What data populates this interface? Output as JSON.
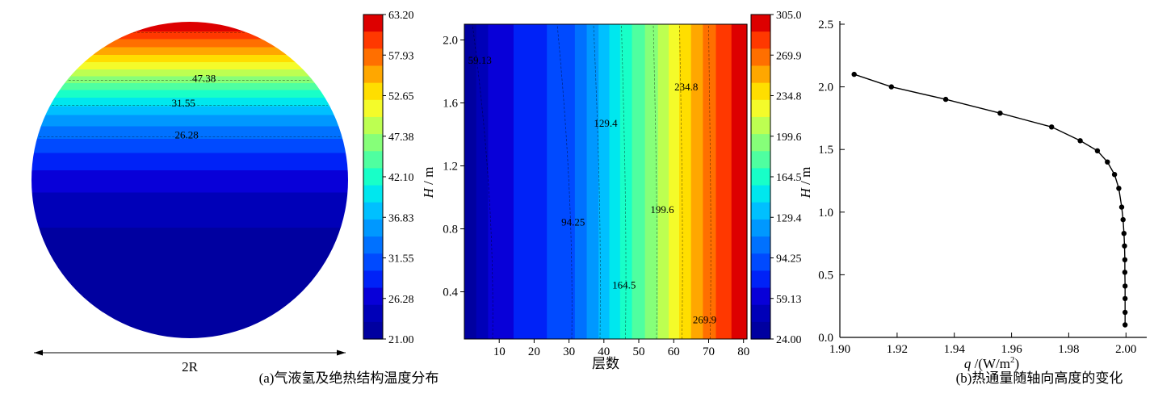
{
  "figure": {
    "caption_a": "(a)气液氢及绝热结构温度分布",
    "caption_b": "(b)热通量随轴向高度的变化",
    "background": "#ffffff"
  },
  "palette": {
    "jet_top_to_bottom": [
      "#DD0000",
      "#FF3800",
      "#FF6F00",
      "#FFA700",
      "#FFDE00",
      "#F4FB2A",
      "#BDFF51",
      "#86FF79",
      "#4FFFA0",
      "#18FFC8",
      "#00E7EE",
      "#00C0FF",
      "#0098FF",
      "#0071FF",
      "#004AFF",
      "#0022F7",
      "#0800D8",
      "#0000B8",
      "#0000A0"
    ]
  },
  "chart_data": [
    {
      "id": "tank-cross-section-temperature",
      "type": "heatmap",
      "shape": "circle",
      "diameter_label": "2R",
      "value_range": [
        21.0,
        63.2
      ],
      "colorbar_ticks": [
        "63.20",
        "57.93",
        "52.65",
        "47.38",
        "42.10",
        "36.83",
        "31.55",
        "26.28",
        "21.00"
      ],
      "band_offsets_top_to_bottom": [
        0,
        0.03,
        0.055,
        0.08,
        0.105,
        0.128,
        0.15,
        0.172,
        0.194,
        0.216,
        0.24,
        0.266,
        0.295,
        0.33,
        0.37,
        0.415,
        0.47,
        0.54,
        0.65,
        1
      ],
      "contour_labels": [
        {
          "text": "47.38",
          "fx": 0.545,
          "fy": 0.19
        },
        {
          "text": "31.55",
          "fx": 0.48,
          "fy": 0.268
        },
        {
          "text": "26.28",
          "fx": 0.49,
          "fy": 0.368
        }
      ],
      "contour_line_fys": [
        0.035,
        0.185,
        0.264,
        0.364
      ]
    },
    {
      "id": "insulation-layer-temperature",
      "type": "heatmap",
      "shape": "rect",
      "xlabel": "层数",
      "ylabel_var": "H",
      "ylabel_rest": " / m",
      "xlim": [
        0,
        81
      ],
      "ylim": [
        0.1,
        2.1
      ],
      "x_ticks": [
        10,
        20,
        30,
        40,
        50,
        60,
        70,
        80
      ],
      "y_ticks": [
        "0.4",
        "0.8",
        "1.2",
        "1.6",
        "2.0"
      ],
      "value_range": [
        24.0,
        305.0
      ],
      "colorbar_ticks": [
        "305.0",
        "269.9",
        "234.8",
        "199.6",
        "164.5",
        "129.4",
        "94.25",
        "59.13",
        "24.00"
      ],
      "band_offsets_left_to_right": [
        0,
        0.042,
        0.084,
        0.174,
        0.292,
        0.391,
        0.433,
        0.475,
        0.513,
        0.551,
        0.593,
        0.639,
        0.685,
        0.723,
        0.76,
        0.802,
        0.844,
        0.89,
        0.945,
        1
      ],
      "contour_labels": [
        {
          "text": "59.13",
          "fx": 0.055,
          "fy": 0.125
        },
        {
          "text": "129.4",
          "fx": 0.5,
          "fy": 0.325
        },
        {
          "text": "234.8",
          "fx": 0.785,
          "fy": 0.21
        },
        {
          "text": "94.25",
          "fx": 0.385,
          "fy": 0.64
        },
        {
          "text": "199.6",
          "fx": 0.7,
          "fy": 0.6
        },
        {
          "text": "164.5",
          "fx": 0.565,
          "fy": 0.84
        },
        {
          "text": "269.9",
          "fx": 0.85,
          "fy": 0.95
        }
      ],
      "contour_line_fxs": [
        0.1,
        0.38,
        0.48,
        0.57,
        0.68,
        0.77,
        0.87
      ]
    },
    {
      "id": "heat-flux-vs-height",
      "type": "line",
      "xlabel_var": "q",
      "xlabel_rest": " /(W/m",
      "xlabel_sup": "2",
      "xlabel_close": ")",
      "ylabel_var": "H",
      "ylabel_rest": " / m",
      "xlim": [
        1.9,
        2.005
      ],
      "ylim": [
        0,
        2.5
      ],
      "x_ticks": [
        "1.90",
        "1.92",
        "1.94",
        "1.96",
        "1.98",
        "2.00"
      ],
      "y_ticks": [
        "0.0",
        "0.5",
        "1.0",
        "1.5",
        "2.0",
        "2.5"
      ],
      "series": [
        {
          "name": "heat-flux-profile",
          "marker": "circle",
          "color": "#000000",
          "points": [
            [
              1.905,
              2.1
            ],
            [
              1.918,
              2.0
            ],
            [
              1.937,
              1.9
            ],
            [
              1.956,
              1.79
            ],
            [
              1.974,
              1.68
            ],
            [
              1.984,
              1.57
            ],
            [
              1.99,
              1.49
            ],
            [
              1.9935,
              1.4
            ],
            [
              1.996,
              1.3
            ],
            [
              1.9975,
              1.19
            ],
            [
              1.9985,
              1.04
            ],
            [
              1.999,
              0.94
            ],
            [
              1.9993,
              0.83
            ],
            [
              1.9995,
              0.73
            ],
            [
              1.9996,
              0.62
            ],
            [
              1.9996,
              0.52
            ],
            [
              1.9997,
              0.41
            ],
            [
              1.9997,
              0.31
            ],
            [
              1.9997,
              0.2
            ],
            [
              1.9997,
              0.1
            ]
          ]
        }
      ]
    }
  ]
}
